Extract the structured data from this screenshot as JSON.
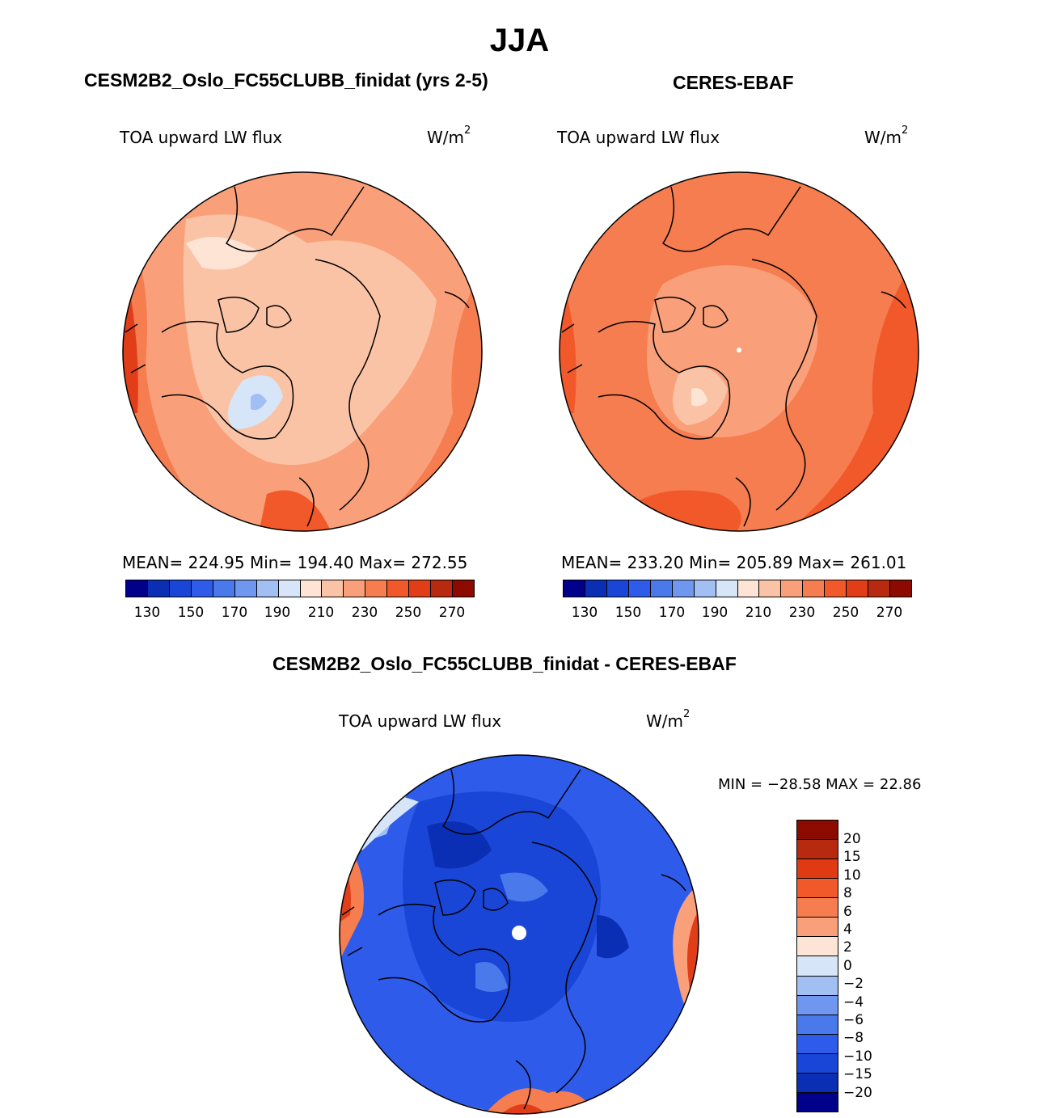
{
  "figure": {
    "season": "JJA",
    "model_title": "CESM2B2_Oslo_FC55CLUBB_finidat (yrs 2-5)",
    "obs_title": "CERES-EBAF",
    "diff_title": "CESM2B2_Oslo_FC55CLUBB_finidat - CERES-EBAF"
  },
  "panels": {
    "model": {
      "variable": "TOA upward LW flux",
      "units_base": "W/m",
      "units_exp": "2",
      "stats_text": "MEAN= 224.95   Min= 194.40   Max= 272.55",
      "mean": 224.95,
      "min": 194.4,
      "max": 272.55
    },
    "obs": {
      "variable": "TOA upward LW flux",
      "units_base": "W/m",
      "units_exp": "2",
      "stats_text": "MEAN= 233.20   Min= 205.89   Max= 261.01",
      "mean": 233.2,
      "min": 205.89,
      "max": 261.01
    },
    "diff": {
      "variable": "TOA upward LW flux",
      "units_base": "W/m",
      "units_exp": "2",
      "minmax_text": "MIN = −28.58 MAX =   22.86",
      "min": -28.58,
      "max": 22.86
    }
  },
  "colorbars": {
    "abs": {
      "colors": [
        "#00008b",
        "#0a2fb4",
        "#1a46d8",
        "#2f5bea",
        "#4a79ec",
        "#6f97f0",
        "#a2bff4",
        "#d6e6f8",
        "#fde4d4",
        "#fbc3a6",
        "#f9a07a",
        "#f57d4f",
        "#f2592a",
        "#e13d18",
        "#b72a10",
        "#8c0a00"
      ],
      "tick_labels": [
        "130",
        "150",
        "170",
        "190",
        "210",
        "230",
        "250",
        "270"
      ]
    },
    "diff": {
      "colors": [
        "#8c0a00",
        "#b72a10",
        "#e03a15",
        "#f2592a",
        "#f57d4f",
        "#f9a07a",
        "#fde4d4",
        "#d6e6f8",
        "#a2bff4",
        "#6f97f0",
        "#4a79ec",
        "#2f5bea",
        "#1a46d8",
        "#0a2fb4",
        "#00008b"
      ],
      "tick_labels": [
        "20",
        "15",
        "10",
        "8",
        "6",
        "4",
        "2",
        "0",
        "−2",
        "−4",
        "−6",
        "−8",
        "−10",
        "−15",
        "−20"
      ]
    }
  }
}
